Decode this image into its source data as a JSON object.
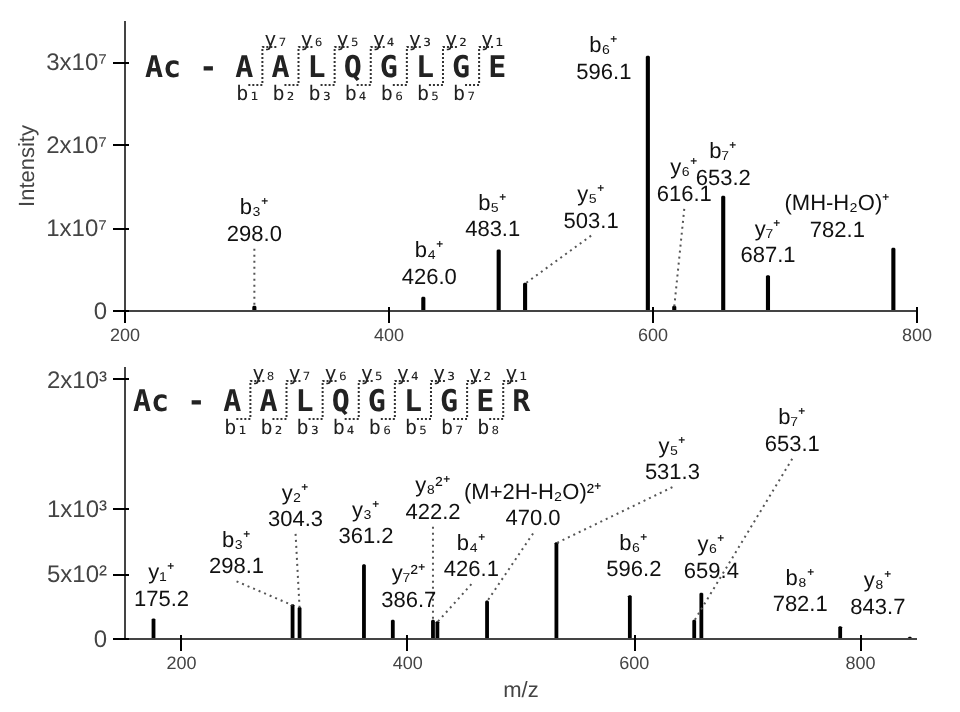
{
  "chart_data": [
    {
      "type": "bar",
      "ylabel": "Intensity",
      "x": [
        298.0,
        426.0,
        483.1,
        503.1,
        596.1,
        616.1,
        653.2,
        687.1,
        782.1
      ],
      "series": [
        {
          "color": "#000000",
          "values": [
            500000,
            1600000,
            7300000,
            3300000,
            30700000,
            500000,
            13800000,
            4200000,
            7500000
          ]
        }
      ],
      "xlim": [
        200,
        800
      ],
      "xticks": [
        200,
        400,
        600,
        800
      ],
      "ylim": [
        0,
        35000000
      ],
      "yticks": [
        {
          "value": 0,
          "label": "0"
        },
        {
          "value": 10000000,
          "label": "1x10⁷"
        },
        {
          "value": 20000000,
          "label": "2x10⁷"
        },
        {
          "value": 30000000,
          "label": "3x10⁷"
        }
      ],
      "annotations": [
        "Ac - A A L Q G L G E",
        "y₇ y₆ y₅ y₄ y₃ y₂ y₁",
        "b₁ b₂ b₃ b₄ b₆ b₅ b₇",
        {
          "text": "b₃⁺\n298.0",
          "x": 298.0,
          "y": 500000
        },
        {
          "text": "b₄⁺\n426.0",
          "x": 426.0,
          "y": 1600000
        },
        {
          "text": "b₅⁺\n483.1",
          "x": 483.1,
          "y": 7300000
        },
        {
          "text": "y₅⁺\n503.1",
          "x": 503.1,
          "y": 3300000
        },
        {
          "text": "b₆⁺\n596.1",
          "x": 596.1,
          "y": 30700000
        },
        {
          "text": "y₆⁺\n616.1",
          "x": 616.1,
          "y": 500000
        },
        {
          "text": "b₇⁺\n653.2",
          "x": 653.2,
          "y": 13800000
        },
        {
          "text": "y₇⁺\n687.1",
          "x": 687.1,
          "y": 4200000
        },
        {
          "text": "(MH-H₂O)⁺\n782.1",
          "x": 782.1,
          "y": 7500000
        }
      ]
    },
    {
      "type": "bar",
      "xlabel": "m/z",
      "x": [
        175.2,
        298.1,
        304.3,
        361.2,
        386.7,
        422.2,
        426.1,
        470.0,
        531.3,
        596.2,
        653.1,
        659.4,
        782.1,
        843.7
      ],
      "series": [
        {
          "color": "#000000",
          "values": [
            150,
            260,
            240,
            570,
            140,
            140,
            130,
            290,
            740,
            330,
            140,
            350,
            90,
            10
          ]
        }
      ],
      "xlim": [
        150,
        850
      ],
      "xticks": [
        200,
        400,
        600,
        800
      ],
      "ylim": [
        0,
        2100
      ],
      "yticks": [
        {
          "value": 0,
          "label": "0"
        },
        {
          "value": 500,
          "label": "5x10²"
        },
        {
          "value": 1000,
          "label": "1x10³"
        },
        {
          "value": 2000,
          "label": "2x10³"
        }
      ],
      "annotations": [
        "Ac - A A L Q G L G E R",
        "y₈ y₇ y₆ y₅ y₄ y₃ y₂ y₁",
        "b₁ b₂ b₃ b₄ b₆ b₅ b₇ b₈",
        {
          "text": "y₁⁺\n175.2",
          "x": 175.2,
          "y": 150
        },
        {
          "text": "b₃⁺\n298.1",
          "x": 298.1,
          "y": 260
        },
        {
          "text": "y₂⁺\n304.3",
          "x": 304.3,
          "y": 240
        },
        {
          "text": "y₃⁺\n361.2",
          "x": 361.2,
          "y": 570
        },
        {
          "text": "y₇²⁺\n386.7",
          "x": 386.7,
          "y": 140
        },
        {
          "text": "y₈²⁺\n422.2",
          "x": 422.2,
          "y": 140
        },
        {
          "text": "b₄⁺\n426.1",
          "x": 426.1,
          "y": 130
        },
        {
          "text": "(M+2H-H₂O)²⁺\n470.0",
          "x": 470.0,
          "y": 290
        },
        {
          "text": "y₅⁺\n531.3",
          "x": 531.3,
          "y": 740
        },
        {
          "text": "b₆⁺\n596.2",
          "x": 596.2,
          "y": 330
        },
        {
          "text": "b₇⁺\n653.1",
          "x": 653.1,
          "y": 140
        },
        {
          "text": "y₆⁺\n659.4",
          "x": 659.4,
          "y": 350
        },
        {
          "text": "b₈⁺\n782.1",
          "x": 782.1,
          "y": 90
        },
        {
          "text": "y₈⁺\n843.7",
          "x": 843.7,
          "y": 10
        }
      ]
    }
  ]
}
